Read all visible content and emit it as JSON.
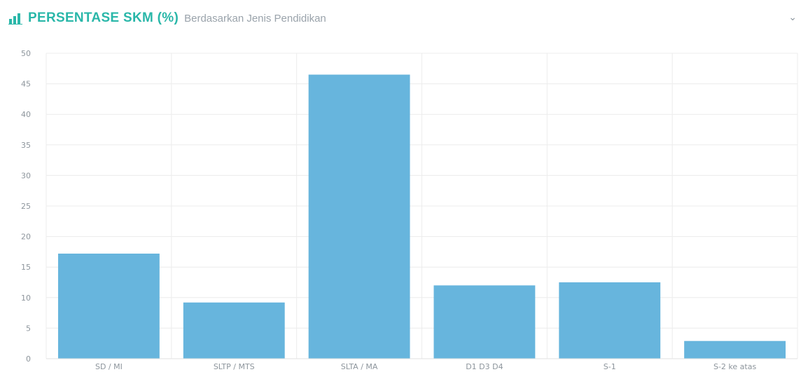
{
  "header": {
    "icon": "bar-chart-icon",
    "title": "PERSENTASE SKM (%)",
    "subtitle": "Berdasarkan Jenis Pendidikan",
    "collapse_icon": "chevron-down-icon",
    "accent_color": "#2ab7a9"
  },
  "chart_data": {
    "type": "bar",
    "title": "PERSENTASE SKM (%)",
    "subtitle": "Berdasarkan Jenis Pendidikan",
    "categories": [
      "SD / MI",
      "SLTP / MTS",
      "SLTA / MA",
      "D1 D3 D4",
      "S-1",
      "S-2 ke atas"
    ],
    "values": [
      17.2,
      9.2,
      46.5,
      12.0,
      12.5,
      2.9
    ],
    "xlabel": "",
    "ylabel": "",
    "ylim": [
      0,
      50
    ],
    "yticks": [
      0,
      5,
      10,
      15,
      20,
      25,
      30,
      35,
      40,
      45,
      50
    ],
    "grid": true,
    "bar_color": "#67b5dd"
  }
}
